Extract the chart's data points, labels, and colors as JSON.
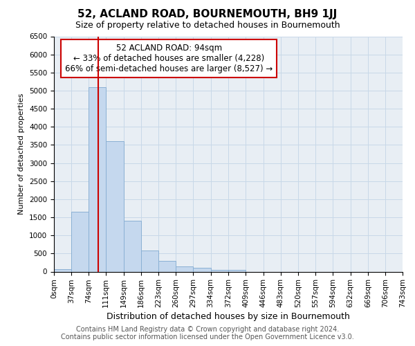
{
  "title": "52, ACLAND ROAD, BOURNEMOUTH, BH9 1JJ",
  "subtitle": "Size of property relative to detached houses in Bournemouth",
  "xlabel": "Distribution of detached houses by size in Bournemouth",
  "ylabel": "Number of detached properties",
  "annotation_line1": "52 ACLAND ROAD: 94sqm",
  "annotation_line2": "← 33% of detached houses are smaller (4,228)",
  "annotation_line3": "66% of semi-detached houses are larger (8,527) →",
  "footer1": "Contains HM Land Registry data © Crown copyright and database right 2024.",
  "footer2": "Contains public sector information licensed under the Open Government Licence v3.0.",
  "bar_edges": [
    0,
    37,
    74,
    111,
    149,
    186,
    223,
    260,
    297,
    334,
    372,
    409,
    446,
    483,
    520,
    557,
    594,
    632,
    669,
    706,
    743
  ],
  "bar_labels": [
    "0sqm",
    "37sqm",
    "74sqm",
    "111sqm",
    "149sqm",
    "186sqm",
    "223sqm",
    "260sqm",
    "297sqm",
    "334sqm",
    "372sqm",
    "409sqm",
    "446sqm",
    "483sqm",
    "520sqm",
    "557sqm",
    "594sqm",
    "632sqm",
    "669sqm",
    "706sqm",
    "743sqm"
  ],
  "bar_values": [
    60,
    1650,
    5100,
    3600,
    1400,
    580,
    300,
    150,
    100,
    50,
    40,
    0,
    0,
    0,
    0,
    0,
    0,
    0,
    0,
    0
  ],
  "bar_color": "#c5d8ee",
  "bar_edge_color": "#8ab0d4",
  "vline_color": "#cc0000",
  "vline_x": 94,
  "annotation_box_color": "#cc0000",
  "grid_color": "#c8d8e8",
  "bg_color": "#e8eef4",
  "ylim": [
    0,
    6500
  ],
  "yticks": [
    0,
    500,
    1000,
    1500,
    2000,
    2500,
    3000,
    3500,
    4000,
    4500,
    5000,
    5500,
    6000,
    6500
  ],
  "title_fontsize": 11,
  "subtitle_fontsize": 9,
  "ylabel_fontsize": 8,
  "xlabel_fontsize": 9,
  "tick_fontsize": 7.5,
  "footer_fontsize": 7,
  "annot_fontsize": 8.5
}
